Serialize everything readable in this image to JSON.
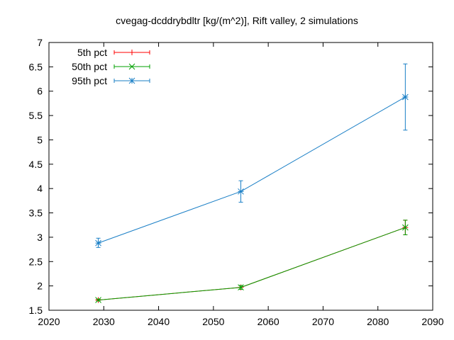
{
  "chart_data": {
    "type": "line",
    "title": "cvegag-dcddrybdltr [kg/(m^2)], Rift valley, 2 simulations",
    "xlabel": "",
    "ylabel": "",
    "xlim": [
      2020,
      2090
    ],
    "ylim": [
      1.5,
      7
    ],
    "x_ticks": [
      "2020",
      "2030",
      "2040",
      "2050",
      "2060",
      "2070",
      "2080",
      "2090"
    ],
    "y_ticks": [
      "1.5",
      "2",
      "2.5",
      "3",
      "3.5",
      "4",
      "4.5",
      "5",
      "5.5",
      "6",
      "6.5",
      "7"
    ],
    "grid": false,
    "legend_position": "top-left",
    "x": [
      2029,
      2055,
      2085
    ],
    "series": [
      {
        "name": "5th pct",
        "color": "#ff0000",
        "marker": "plus",
        "values": [
          1.71,
          1.97,
          3.2
        ],
        "err_low": [
          1.69,
          1.93,
          3.05
        ],
        "err_high": [
          1.73,
          2.01,
          3.35
        ]
      },
      {
        "name": "50th pct",
        "color": "#00a000",
        "marker": "cross",
        "values": [
          1.71,
          1.97,
          3.2
        ],
        "err_low": [
          1.69,
          1.93,
          3.05
        ],
        "err_high": [
          1.73,
          2.01,
          3.35
        ]
      },
      {
        "name": "95th pct",
        "color": "#1a7fc6",
        "marker": "star",
        "values": [
          2.88,
          3.94,
          5.88
        ],
        "err_low": [
          2.79,
          3.72,
          5.2
        ],
        "err_high": [
          2.98,
          4.16,
          6.56
        ]
      }
    ]
  }
}
